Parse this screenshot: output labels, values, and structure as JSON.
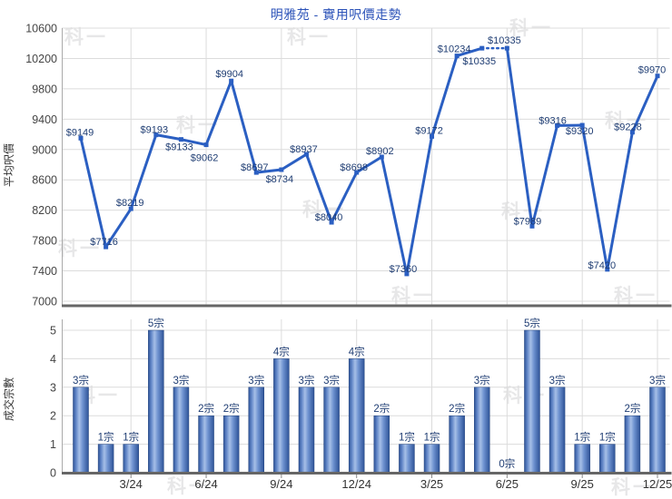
{
  "title": "明雅苑 - 實用呎價走勢",
  "watermark_text": "科一",
  "colors": {
    "title": "#2b52b8",
    "line": "#2b5fc2",
    "bar_edge": "#2e5397",
    "bar_mid": "#6e92d0",
    "bar_highlight": "#a6bfe7",
    "data_label": "#1f3d73",
    "axis_text": "#444444",
    "x_label_text": "#333333",
    "grid": "#dcdcdc",
    "axis_line": "#aaaaaa",
    "baseline": "#666666"
  },
  "chart_data": [
    {
      "type": "line",
      "name": "price-per-sqft-trend",
      "ylabel": "平均呎價",
      "ylim": [
        7000,
        10600
      ],
      "ytick_step": 400,
      "grid": true,
      "x_count": 24,
      "values": [
        9149,
        7716,
        8219,
        9193,
        9133,
        9062,
        9904,
        8697,
        8734,
        8937,
        8040,
        8698,
        8902,
        7360,
        9172,
        10234,
        10335,
        10335,
        7989,
        9316,
        9320,
        7420,
        9228,
        9970
      ],
      "point_labels": [
        "$9149",
        "$7716",
        "$8219",
        "$9193",
        "$9133",
        "$9062",
        "$9904",
        "$8697",
        "$8734",
        "$8937",
        "$8040",
        "$8698",
        "$8902",
        "$7360",
        "$9172",
        "$10234",
        "$10335",
        "$10335",
        "$7989",
        "$9316",
        "$9320",
        "$7420",
        "$9228",
        "$9970"
      ],
      "dotted_segments": [
        [
          16,
          17
        ]
      ],
      "x_tick_positions": [
        2,
        5,
        8,
        11,
        14,
        17,
        20,
        23
      ],
      "x_tick_labels": []
    },
    {
      "type": "bar",
      "name": "transaction-count",
      "ylabel": "成交宗數",
      "ylim": [
        0,
        5
      ],
      "ytick_step": 1,
      "grid": true,
      "x_count": 24,
      "values": [
        3,
        1,
        1,
        5,
        3,
        2,
        2,
        3,
        4,
        3,
        3,
        4,
        2,
        1,
        1,
        2,
        3,
        0,
        5,
        3,
        1,
        1,
        2,
        3
      ],
      "bar_labels": [
        "3宗",
        "1宗",
        "1宗",
        "5宗",
        "3宗",
        "2宗",
        "2宗",
        "3宗",
        "4宗",
        "3宗",
        "3宗",
        "4宗",
        "2宗",
        "1宗",
        "1宗",
        "2宗",
        "3宗",
        "0宗",
        "5宗",
        "3宗",
        "1宗",
        "1宗",
        "2宗",
        "3宗"
      ],
      "x_tick_positions": [
        2,
        5,
        8,
        11,
        14,
        17,
        20,
        23
      ],
      "x_tick_labels": [
        "3/24",
        "6/24",
        "9/24",
        "12/24",
        "3/25",
        "6/25",
        "9/25",
        "12/25"
      ]
    }
  ]
}
